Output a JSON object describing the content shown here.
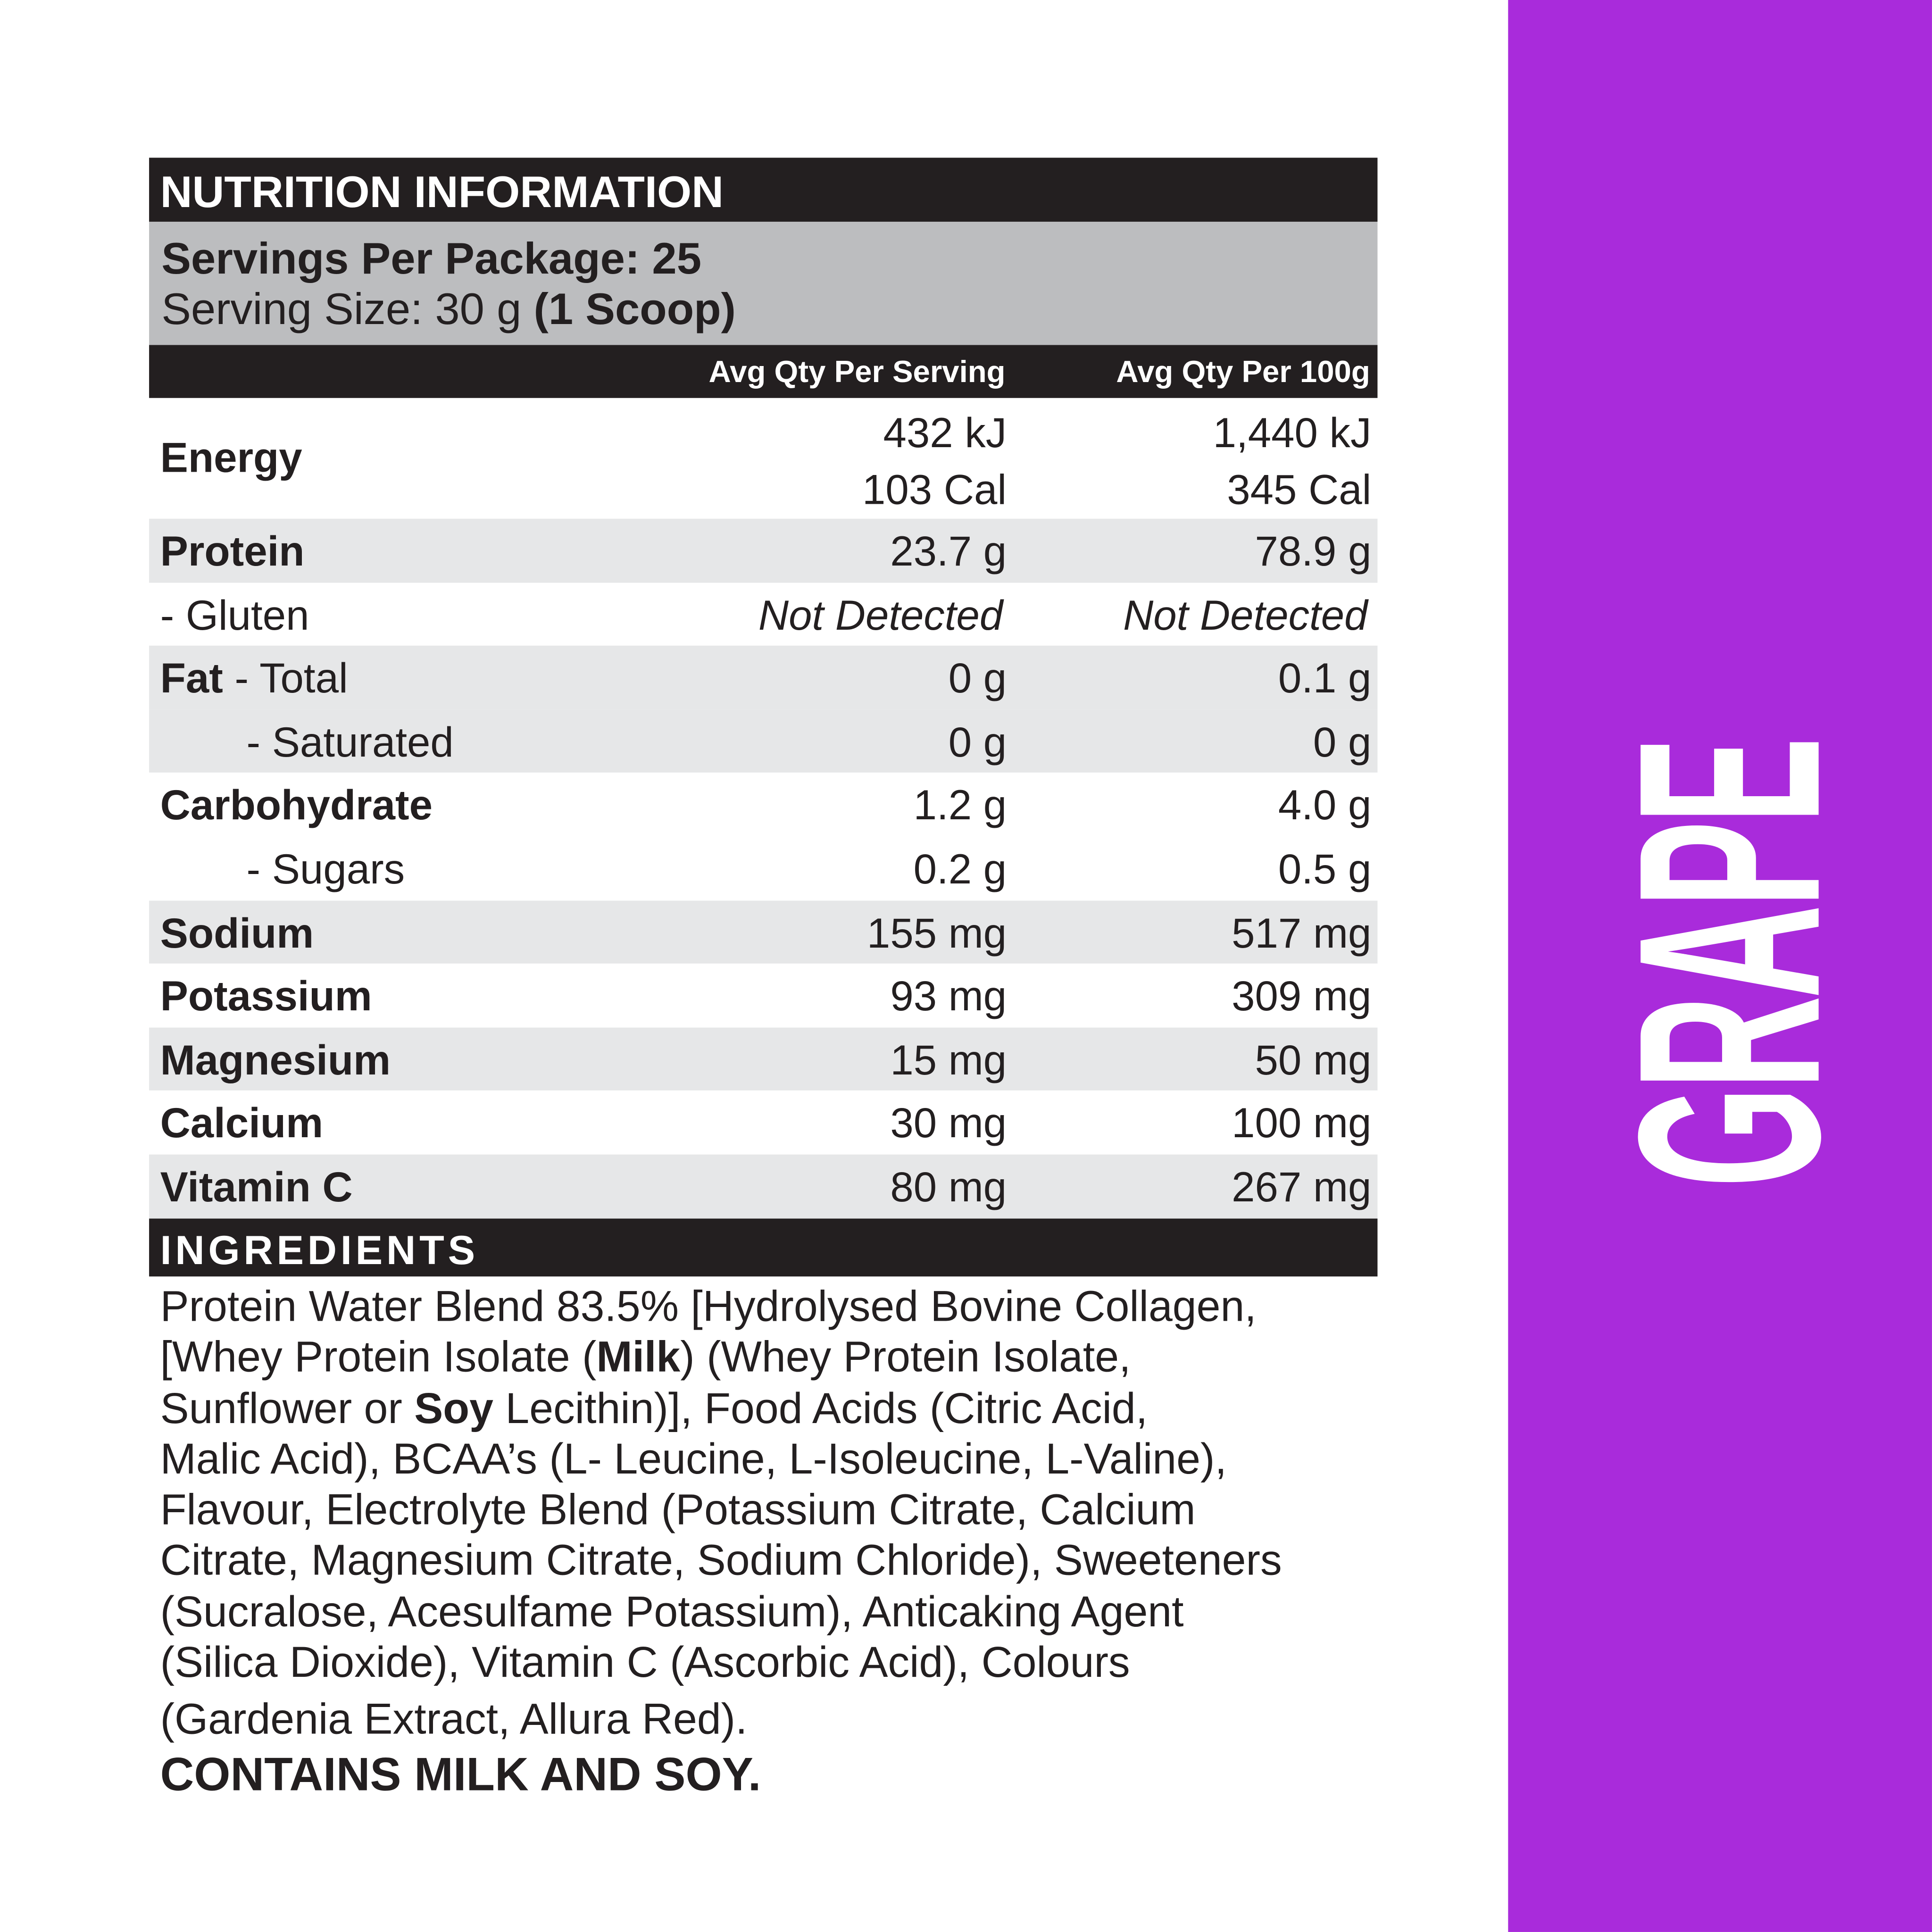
{
  "title": "NUTRITION INFORMATION",
  "servings_per_package": "Servings Per Package: 25",
  "serving_size": {
    "text": "Serving Size: 30 g ",
    "bold": "(1 Scoop)"
  },
  "columns": {
    "per_serving": "Avg Qty Per Serving",
    "per_100g": "Avg Qty Per 100g"
  },
  "rows": [
    {
      "label": "Energy",
      "serving": [
        "432 kJ",
        "103 Cal"
      ],
      "per100": [
        "1,440 kJ",
        "345 Cal"
      ]
    },
    {
      "label": "Protein",
      "serving": "23.7 g",
      "per100": "78.9 g"
    },
    {
      "label": "- Gluten",
      "serving": "Not Detected",
      "per100": "Not Detected"
    },
    {
      "label": "Fat",
      "sublabel": " - Total",
      "serving": "0 g",
      "per100": "0.1 g"
    },
    {
      "label": "- Saturated",
      "serving": "0 g",
      "per100": "0 g"
    },
    {
      "label": "Carbohydrate",
      "serving": "1.2 g",
      "per100": "4.0 g"
    },
    {
      "label": "- Sugars",
      "serving": "0.2 g",
      "per100": "0.5 g"
    },
    {
      "label": "Sodium",
      "serving": "155 mg",
      "per100": "517 mg"
    },
    {
      "label": "Potassium",
      "serving": "93 mg",
      "per100": "309 mg"
    },
    {
      "label": "Magnesium",
      "serving": "15 mg",
      "per100": "50 mg"
    },
    {
      "label": "Calcium",
      "serving": "30 mg",
      "per100": "100 mg"
    },
    {
      "label": "Vitamin C",
      "serving": "80 mg",
      "per100": "267 mg"
    }
  ],
  "ingredients": {
    "heading": "INGREDIENTS",
    "l1": "Protein Water Blend 83.5% [Hydrolysed Bovine Collagen,",
    "l2a": "[Whey Protein Isolate (",
    "l2b": "Milk",
    "l2c": ") (Whey Protein Isolate,",
    "l3a": "Sunflower or ",
    "l3b": "Soy",
    "l3c": " Lecithin)], Food Acids (Citric Acid,",
    "l4": "Malic Acid), BCAA’s (L- Leucine, L-Isoleucine, L-Valine),",
    "l5": "Flavour, Electrolyte Blend (Potassium Citrate, Calcium",
    "l6": "Citrate, Magnesium Citrate, Sodium Chloride), Sweeteners",
    "l7": "(Sucralose, Acesulfame Potassium), Anticaking Agent",
    "l8": "(Silica Dioxide), Vitamin C (Ascorbic Acid), Colours",
    "l9": "(Gardenia Extract, Allura Red).",
    "allergens": "CONTAINS MILK AND SOY."
  },
  "flavour": "GRAPE",
  "colors": {
    "accent": "#a92bdb",
    "header": "#231f20",
    "band": "#bcbdbf",
    "shade": "#e6e7e8"
  }
}
